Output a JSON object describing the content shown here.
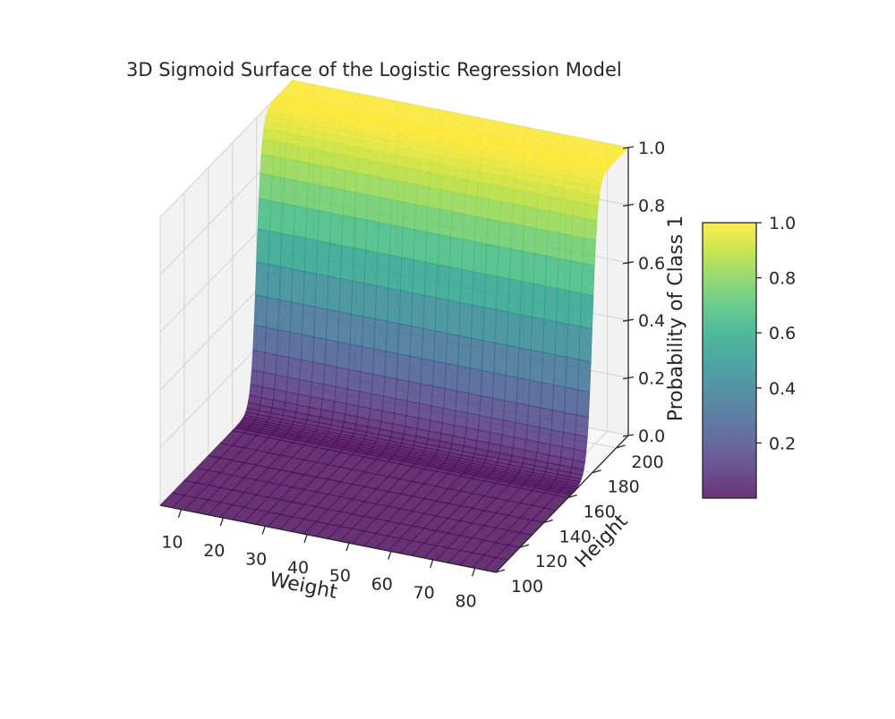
{
  "chart_data": {
    "type": "surface3d",
    "title": "3D Sigmoid Surface of the Logistic Regression Model",
    "xlabel": "Weight",
    "ylabel": "Height",
    "zlabel": "Probability of Class 1",
    "x_ticks": [
      10,
      20,
      30,
      40,
      50,
      60,
      70,
      80
    ],
    "y_ticks": [
      100,
      120,
      140,
      160,
      180,
      200
    ],
    "z_ticks": [
      "0.0",
      "0.2",
      "0.4",
      "0.6",
      "0.8",
      "1.0"
    ],
    "xlim": [
      5,
      85
    ],
    "ylim": [
      100,
      210
    ],
    "zlim": [
      0,
      1
    ],
    "colormap": "viridis",
    "surface_alpha": 0.8,
    "grid": true,
    "pane_color": "#f2f2f2",
    "colorbar": {
      "ticks": [
        "0.2",
        "0.4",
        "0.6",
        "0.8",
        "1.0"
      ],
      "range": [
        0,
        1
      ],
      "placement": "right"
    },
    "model": {
      "function": "sigmoid",
      "midpoint_height": 180,
      "steepness_per_cm": 0.45,
      "probability_at_height": [
        {
          "height": 100,
          "probability": 0.0
        },
        {
          "height": 160,
          "probability": 0.0
        },
        {
          "height": 170,
          "probability": 0.01
        },
        {
          "height": 175,
          "probability": 0.1
        },
        {
          "height": 180,
          "probability": 0.5
        },
        {
          "height": 185,
          "probability": 0.9
        },
        {
          "height": 190,
          "probability": 0.99
        },
        {
          "height": 210,
          "probability": 1.0
        }
      ]
    }
  }
}
